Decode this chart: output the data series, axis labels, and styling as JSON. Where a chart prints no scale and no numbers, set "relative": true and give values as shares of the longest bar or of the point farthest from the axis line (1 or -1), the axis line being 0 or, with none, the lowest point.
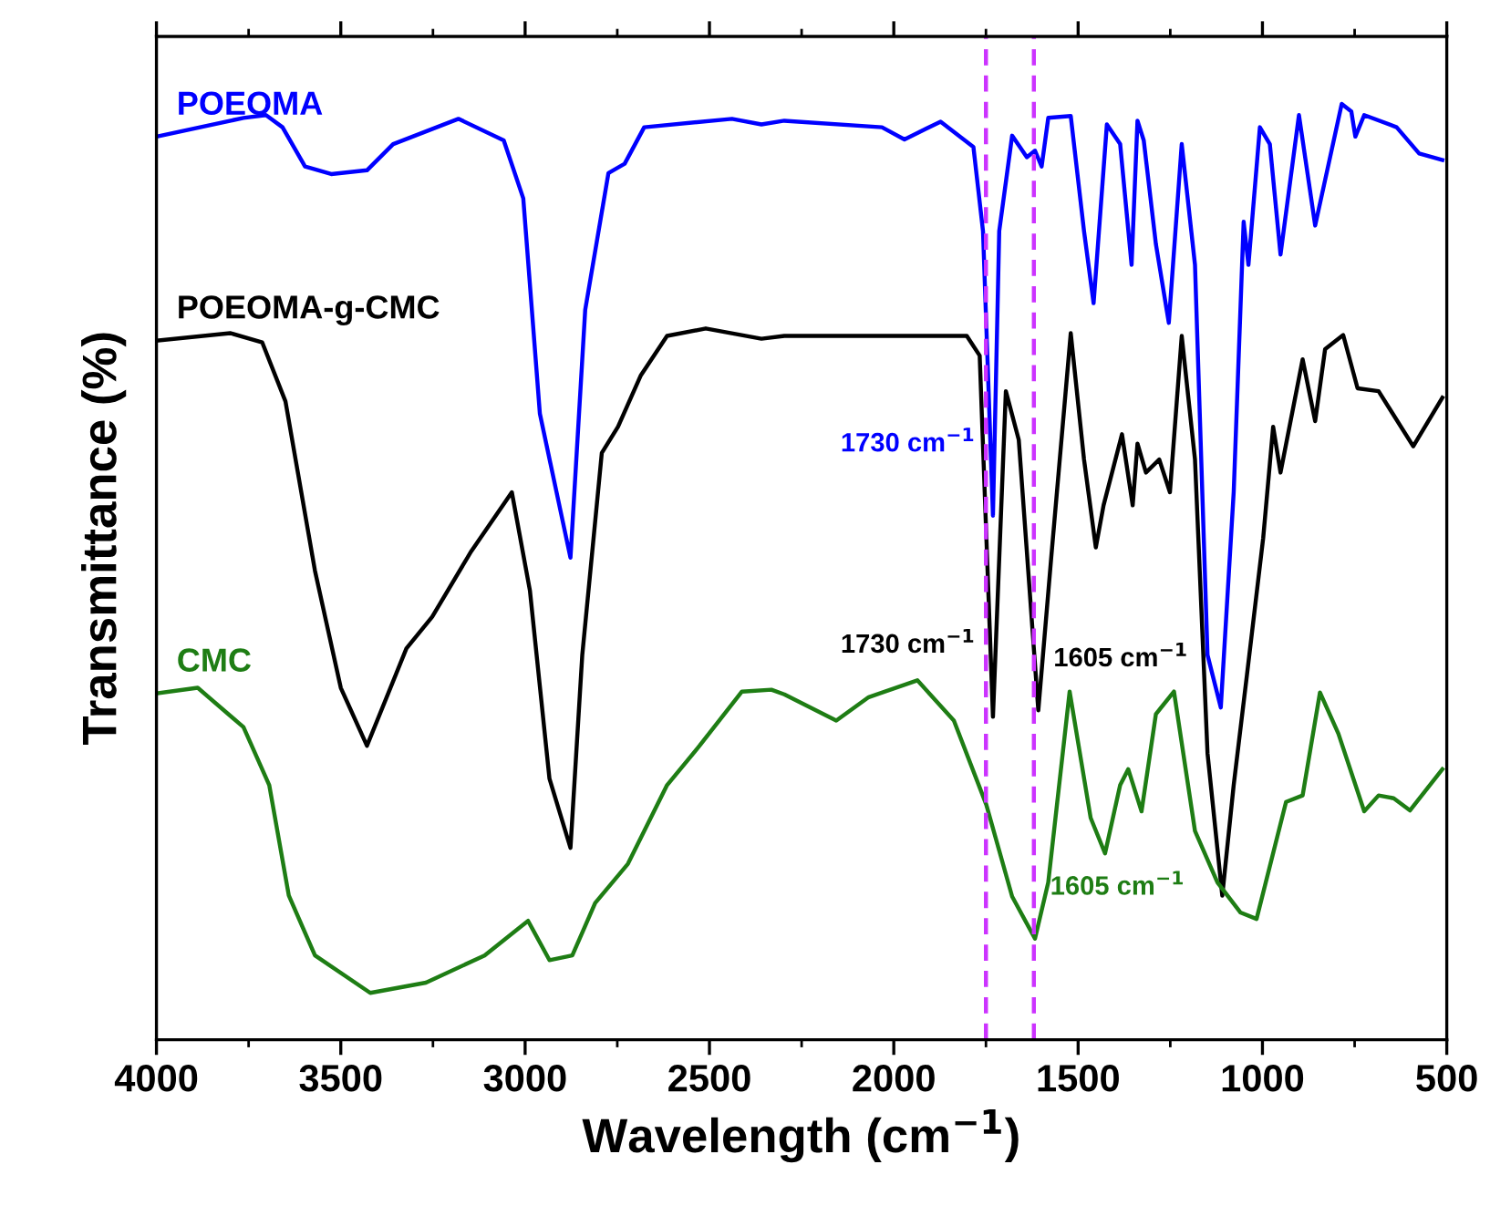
{
  "chart_data": {
    "type": "line",
    "relative": true,
    "xlabel": "Wavelength (cm$^{−1}$)",
    "ylabel": "Transmittance (%)",
    "xlim": [
      4000,
      500
    ],
    "xticks": [
      4000,
      3500,
      3000,
      2500,
      2000,
      1500,
      1000,
      500
    ],
    "grid": false,
    "legend": false,
    "tick_labels": "x",
    "ref_lines": [
      {
        "axis": "x",
        "value": 1750,
        "color": "#cc33ff",
        "line_style": "dashed"
      },
      {
        "axis": "x",
        "value": 1620,
        "color": "#cc33ff",
        "line_style": "dashed"
      }
    ],
    "annotations": [
      {
        "text": "1730 cm$^{−1}$",
        "x": 1731,
        "y": 0.56
      },
      {
        "text": "1730 cm$^{−1}$",
        "x": 1731,
        "y": 0.345
      },
      {
        "text": "1605 cm$^{−1}$",
        "x": 1608,
        "y": 0.352
      },
      {
        "text": "1605 cm$^{−1}$",
        "x": 1617,
        "y": 0.108
      }
    ],
    "series": [
      {
        "name": "POEOMA",
        "color": "#0000ff",
        "x": [
          4000,
          3764,
          3703,
          3658,
          3597,
          3526,
          3429,
          3358,
          3181,
          3058,
          3005,
          2960,
          2877,
          2837,
          2774,
          2730,
          2677,
          2439,
          2359,
          2297,
          2032,
          1971,
          1873,
          1784,
          1758,
          1731,
          1714,
          1679,
          1639,
          1617,
          1599,
          1581,
          1520,
          1484,
          1458,
          1422,
          1386,
          1355,
          1339,
          1322,
          1289,
          1254,
          1219,
          1183,
          1149,
          1113,
          1078,
          1051,
          1038,
          1007,
          980,
          951,
          901,
          857,
          785,
          759,
          748,
          724,
          636,
          575,
          512
        ],
        "values": [
          0.965,
          0.985,
          0.988,
          0.975,
          0.933,
          0.925,
          0.929,
          0.957,
          0.984,
          0.961,
          0.899,
          0.669,
          0.515,
          0.78,
          0.926,
          0.936,
          0.975,
          0.984,
          0.978,
          0.982,
          0.975,
          0.962,
          0.981,
          0.954,
          0.864,
          0.56,
          0.864,
          0.966,
          0.943,
          0.95,
          0.933,
          0.985,
          0.987,
          0.864,
          0.787,
          0.978,
          0.957,
          0.828,
          0.982,
          0.961,
          0.85,
          0.766,
          0.957,
          0.828,
          0.411,
          0.355,
          0.585,
          0.874,
          0.828,
          0.975,
          0.957,
          0.839,
          0.988,
          0.87,
          1.0,
          0.992,
          0.965,
          0.988,
          0.975,
          0.947,
          0.94
        ]
      },
      {
        "name": "POEOMA-g-CMC",
        "color": "#000000",
        "x": [
          4000,
          3800,
          3713,
          3650,
          3570,
          3500,
          3429,
          3322,
          3252,
          3146,
          3036,
          2987,
          2934,
          2877,
          2845,
          2792,
          2748,
          2686,
          2615,
          2510,
          2359,
          2297,
          2032,
          1802,
          1767,
          1731,
          1696,
          1661,
          1608,
          1573,
          1520,
          1484,
          1452,
          1431,
          1381,
          1352,
          1339,
          1316,
          1280,
          1251,
          1219,
          1183,
          1149,
          1109,
          1078,
          1042,
          998,
          971,
          951,
          891,
          857,
          830,
          781,
          742,
          685,
          591,
          512
        ],
        "values": [
          0.747,
          0.755,
          0.745,
          0.682,
          0.501,
          0.376,
          0.314,
          0.418,
          0.452,
          0.522,
          0.585,
          0.48,
          0.279,
          0.205,
          0.411,
          0.627,
          0.655,
          0.71,
          0.752,
          0.76,
          0.749,
          0.752,
          0.752,
          0.752,
          0.731,
          0.345,
          0.693,
          0.641,
          0.352,
          0.515,
          0.755,
          0.62,
          0.526,
          0.571,
          0.647,
          0.571,
          0.637,
          0.606,
          0.62,
          0.585,
          0.752,
          0.62,
          0.306,
          0.154,
          0.272,
          0.39,
          0.536,
          0.655,
          0.606,
          0.727,
          0.661,
          0.738,
          0.753,
          0.696,
          0.693,
          0.634,
          0.686
        ]
      },
      {
        "name": "CMC",
        "color": "#1e7d14",
        "x": [
          4000,
          3888,
          3764,
          3694,
          3641,
          3570,
          3420,
          3269,
          3110,
          2992,
          2934,
          2872,
          2810,
          2721,
          2615,
          2527,
          2412,
          2332,
          2297,
          2156,
          2068,
          1936,
          1837,
          1749,
          1679,
          1617,
          1581,
          1523,
          1466,
          1427,
          1386,
          1364,
          1328,
          1289,
          1240,
          1183,
          1122,
          1060,
          1016,
          936,
          891,
          844,
          794,
          724,
          685,
          644,
          600,
          512
        ],
        "values": [
          0.37,
          0.376,
          0.334,
          0.272,
          0.154,
          0.09,
          0.05,
          0.061,
          0.09,
          0.127,
          0.085,
          0.09,
          0.146,
          0.188,
          0.272,
          0.314,
          0.372,
          0.374,
          0.369,
          0.341,
          0.366,
          0.384,
          0.341,
          0.251,
          0.153,
          0.108,
          0.168,
          0.372,
          0.237,
          0.199,
          0.272,
          0.289,
          0.244,
          0.348,
          0.372,
          0.223,
          0.168,
          0.136,
          0.129,
          0.254,
          0.261,
          0.371,
          0.327,
          0.244,
          0.261,
          0.258,
          0.245,
          0.289
        ]
      }
    ]
  }
}
